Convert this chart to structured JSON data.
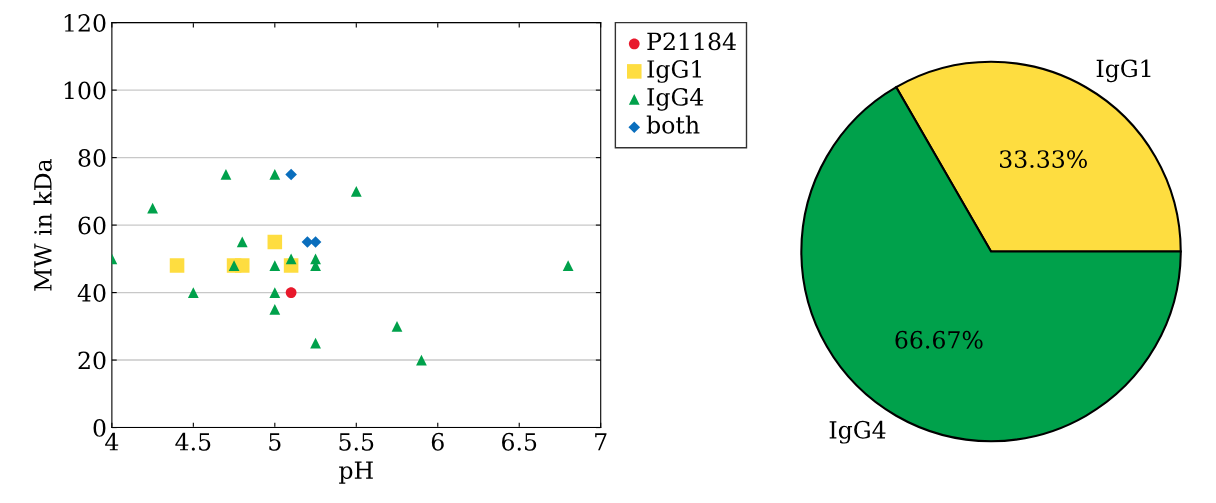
{
  "chart_data": [
    {
      "type": "scatter",
      "xlabel": "pH",
      "ylabel": "MW in kDa",
      "xlim": [
        4,
        7
      ],
      "ylim": [
        0,
        120
      ],
      "xticks": [
        4,
        4.5,
        5,
        5.5,
        6,
        6.5,
        7
      ],
      "yticks": [
        0,
        20,
        40,
        60,
        80,
        100,
        120
      ],
      "grid": "y",
      "legend": "right",
      "series": [
        {
          "name": "P21184",
          "color": "#e8192c",
          "marker": "circle",
          "x": [
            5.1
          ],
          "values": [
            40
          ]
        },
        {
          "name": "IgG1",
          "color": "#fedd40",
          "marker": "square",
          "x": [
            4.4,
            4.75,
            4.8,
            5.0,
            5.1
          ],
          "values": [
            48,
            48,
            48,
            55,
            48
          ]
        },
        {
          "name": "IgG4",
          "color": "#00a14b",
          "marker": "triangle",
          "x": [
            4.0,
            4.25,
            4.5,
            4.7,
            4.75,
            4.8,
            5.0,
            5.0,
            5.0,
            5.0,
            5.1,
            5.25,
            5.25,
            5.25,
            5.5,
            5.75,
            5.9,
            6.8
          ],
          "values": [
            50,
            65,
            40,
            75,
            48,
            55,
            75,
            48,
            40,
            35,
            50,
            50,
            48,
            25,
            70,
            30,
            20,
            48
          ]
        },
        {
          "name": "both",
          "color": "#0a6ebd",
          "marker": "diamond",
          "x": [
            5.1,
            5.2,
            5.25
          ],
          "values": [
            75,
            55,
            55
          ]
        }
      ]
    },
    {
      "type": "pie",
      "categories": [
        "IgG1",
        "IgG4"
      ],
      "values": [
        33.33,
        66.67
      ],
      "colors": [
        "#fedd40",
        "#00a14b"
      ],
      "value_labels": [
        "33.33%",
        "66.67%"
      ]
    }
  ]
}
